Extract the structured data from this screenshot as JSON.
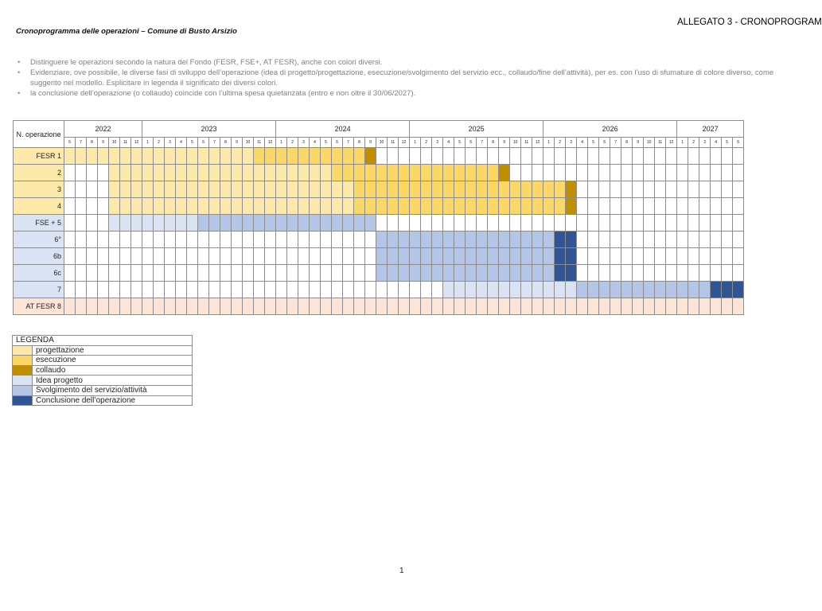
{
  "header": {
    "allegato": "ALLEGATO 3 - CRONOPROGRAM",
    "title": "Cronoprogramma delle operazioni – Comune di Busto Arsizio"
  },
  "bullets": [
    "Distinguere le operazioni secondo la natura del Fondo (FESR, FSE+, AT FESR), anche con colori diversi.",
    "Evidenziare, ove possibile, le diverse fasi di sviluppo dell’operazione (idea di progetto/progettazione, esecuzione/svolgimento del servizio ecc., collaudo/fine dell’attività), per es. con l’uso di sfumature di colore diverso, come suggerito nel modello. Esplicitare in legenda il significato dei diversi colori.",
    "la conclusione dell’operazione (o collaudo) coincide con l’ultima spesa quietanzata (entro e non oltre il 30/06/2027)."
  ],
  "colors": {
    "progettazione": "#fde9a9",
    "esecuzione": "#fbd766",
    "collaudo": "#bf8f00",
    "idea": "#dae3f3",
    "svolgimento": "#b4c6e7",
    "conclusione": "#2f5597",
    "at_fesr": "#fce4d6"
  },
  "gantt": {
    "header_label": "N. operazione",
    "years": [
      {
        "label": "2022",
        "months": [
          "6",
          "7",
          "8",
          "9",
          "10",
          "11",
          "12"
        ]
      },
      {
        "label": "2023",
        "months": [
          "1",
          "2",
          "3",
          "4",
          "5",
          "6",
          "7",
          "8",
          "9",
          "10",
          "11",
          "12"
        ]
      },
      {
        "label": "2024",
        "months": [
          "1",
          "2",
          "3",
          "4",
          "5",
          "6",
          "7",
          "8",
          "9",
          "10",
          "11",
          "12"
        ]
      },
      {
        "label": "2025",
        "months": [
          "1",
          "2",
          "3",
          "4",
          "5",
          "6",
          "7",
          "8",
          "9",
          "10",
          "11",
          "12"
        ]
      },
      {
        "label": "2026",
        "months": [
          "1",
          "2",
          "3",
          "4",
          "5",
          "6",
          "7",
          "8",
          "9",
          "10",
          "11",
          "12"
        ]
      },
      {
        "label": "2027",
        "months": [
          "1",
          "2",
          "3",
          "4",
          "5",
          "6"
        ]
      }
    ],
    "rows": [
      {
        "label": "FESR 1",
        "label_bg": "progettazione",
        "segments": [
          {
            "from": "2022-06",
            "to": "2023-10",
            "phase": "progettazione"
          },
          {
            "from": "2023-11",
            "to": "2024-08",
            "phase": "esecuzione"
          },
          {
            "from": "2024-09",
            "to": "2024-09",
            "phase": "collaudo"
          }
        ]
      },
      {
        "label": "2",
        "label_bg": "progettazione",
        "segments": [
          {
            "from": "2022-10",
            "to": "2024-05",
            "phase": "progettazione"
          },
          {
            "from": "2024-06",
            "to": "2025-08",
            "phase": "esecuzione"
          },
          {
            "from": "2025-09",
            "to": "2025-09",
            "phase": "collaudo"
          }
        ]
      },
      {
        "label": "3",
        "label_bg": "progettazione",
        "segments": [
          {
            "from": "2022-10",
            "to": "2024-07",
            "phase": "progettazione"
          },
          {
            "from": "2024-08",
            "to": "2026-02",
            "phase": "esecuzione"
          },
          {
            "from": "2026-03",
            "to": "2026-03",
            "phase": "collaudo"
          }
        ]
      },
      {
        "label": "4",
        "label_bg": "progettazione",
        "segments": [
          {
            "from": "2022-10",
            "to": "2024-07",
            "phase": "progettazione"
          },
          {
            "from": "2024-08",
            "to": "2026-02",
            "phase": "esecuzione"
          },
          {
            "from": "2026-03",
            "to": "2026-03",
            "phase": "collaudo"
          }
        ]
      },
      {
        "label": "FSE + 5",
        "label_bg": "idea",
        "segments": [
          {
            "from": "2022-10",
            "to": "2023-05",
            "phase": "idea"
          },
          {
            "from": "2023-06",
            "to": "2024-09",
            "phase": "svolgimento"
          }
        ]
      },
      {
        "label": "6°",
        "label_bg": "idea",
        "segments": [
          {
            "from": "2024-10",
            "to": "2026-01",
            "phase": "svolgimento"
          },
          {
            "from": "2026-02",
            "to": "2026-03",
            "phase": "conclusione"
          }
        ]
      },
      {
        "label": "6b",
        "label_bg": "idea",
        "segments": [
          {
            "from": "2024-10",
            "to": "2026-01",
            "phase": "svolgimento"
          },
          {
            "from": "2026-02",
            "to": "2026-03",
            "phase": "conclusione"
          }
        ]
      },
      {
        "label": "6c",
        "label_bg": "idea",
        "segments": [
          {
            "from": "2024-10",
            "to": "2026-01",
            "phase": "svolgimento"
          },
          {
            "from": "2026-02",
            "to": "2026-03",
            "phase": "conclusione"
          }
        ]
      },
      {
        "label": "7",
        "label_bg": "idea",
        "segments": [
          {
            "from": "2025-04",
            "to": "2026-03",
            "phase": "idea"
          },
          {
            "from": "2026-04",
            "to": "2027-03",
            "phase": "svolgimento"
          },
          {
            "from": "2027-04",
            "to": "2027-06",
            "phase": "conclusione"
          }
        ]
      },
      {
        "label": "AT FESR 8",
        "label_bg": "at_fesr",
        "segments": [
          {
            "from": "2022-06",
            "to": "2027-06",
            "phase": "at_fesr"
          }
        ]
      }
    ]
  },
  "legend": {
    "title": "LEGENDA",
    "items": [
      {
        "label": "progettazione",
        "phase": "progettazione"
      },
      {
        "label": "esecuzione",
        "phase": "esecuzione"
      },
      {
        "label": "collaudo",
        "phase": "collaudo"
      },
      {
        "label": "Idea progetto",
        "phase": "idea"
      },
      {
        "label": "Svolgimento del servizio/attività",
        "phase": "svolgimento"
      },
      {
        "label": "Conclusione dell’operazione",
        "phase": "conclusione"
      }
    ]
  },
  "page_number": "1"
}
